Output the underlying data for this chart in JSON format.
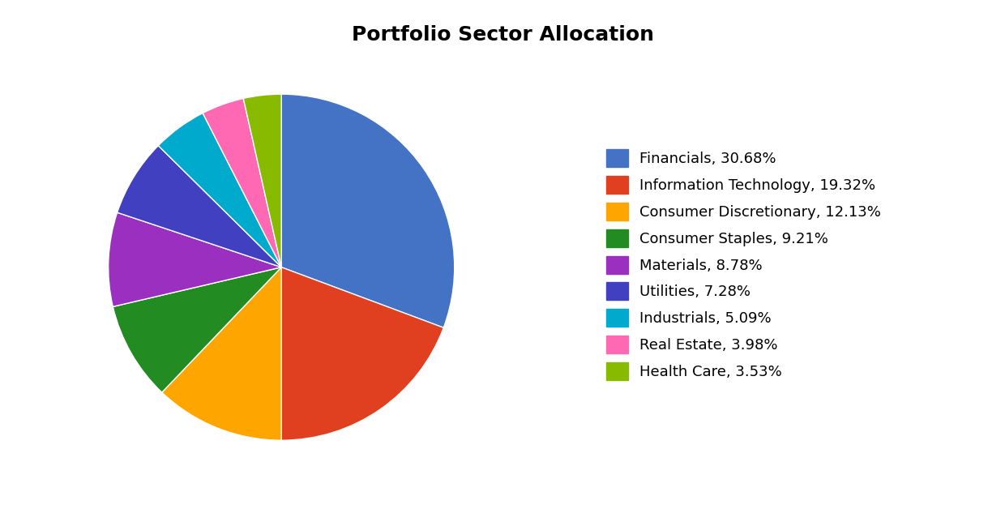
{
  "title": "Portfolio Sector Allocation",
  "sectors": [
    "Financials",
    "Information Technology",
    "Consumer Discretionary",
    "Consumer Staples",
    "Materials",
    "Utilities",
    "Industrials",
    "Real Estate",
    "Health Care"
  ],
  "values": [
    30.68,
    19.32,
    12.13,
    9.21,
    8.78,
    7.28,
    5.09,
    3.98,
    3.53
  ],
  "colors": [
    "#4472C4",
    "#E04020",
    "#FFA500",
    "#228B22",
    "#9B30C0",
    "#4040C0",
    "#00AACC",
    "#FF69B4",
    "#88BB00"
  ],
  "legend_labels": [
    "Financials, 30.68%",
    "Information Technology, 19.32%",
    "Consumer Discretionary, 12.13%",
    "Consumer Staples, 9.21%",
    "Materials, 8.78%",
    "Utilities, 7.28%",
    "Industrials, 5.09%",
    "Real Estate, 3.98%",
    "Health Care, 3.53%"
  ],
  "title_fontsize": 18,
  "legend_fontsize": 13,
  "background_color": "#FFFFFF",
  "startangle": 90
}
